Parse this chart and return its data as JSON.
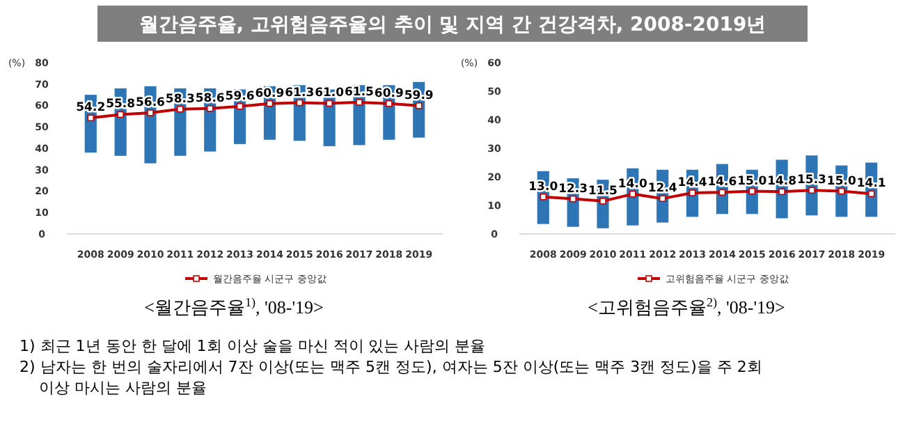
{
  "chart_data": [
    {
      "type": "bar",
      "title": "월간음주율, 고위험음주율의 추이 및 지역 간 건강격차, 2008-2019년",
      "ylabel": "(%)",
      "categories": [
        "2008",
        "2009",
        "2010",
        "2011",
        "2012",
        "2013",
        "2014",
        "2015",
        "2016",
        "2017",
        "2018",
        "2019"
      ],
      "series": [
        {
          "color": "#2e75b6",
          "base": [
            38,
            36.5,
            33,
            36.5,
            38.5,
            42,
            44,
            43.5,
            41,
            41.5,
            44,
            45
          ],
          "values": [
            27,
            31.5,
            36,
            31.5,
            29.5,
            25.5,
            25,
            26,
            26.5,
            28,
            25.5,
            26
          ]
        },
        {
          "type": "line",
          "name": "월간음주율 시군구 중앙값",
          "color": "#c00000",
          "values": [
            54.2,
            55.8,
            56.6,
            58.3,
            58.6,
            59.6,
            60.9,
            61.3,
            61.0,
            61.5,
            60.9,
            59.9
          ],
          "value_labels": [
            "54.2",
            "55.8",
            "56.6",
            "58.3",
            "58.6",
            "59.6",
            "60.9",
            "61.3",
            "61.0",
            "61.5",
            "60.9",
            "59.9"
          ]
        }
      ],
      "ylim": [
        0,
        80
      ],
      "yticks": [
        0,
        10,
        20,
        30,
        40,
        50,
        60,
        70,
        80
      ],
      "marker": "square",
      "legend": "bottom",
      "annotations": [
        "<월간음주율$^{1)}$, '08-'19>",
        "1) 최근 1년 동안 한 달에 1회 이상 술을 마신 적이 있는 사람의 분율",
        "2) 남자는 한 번의 술자리에서 7잔 이상(또는 맥주 5캔 정도), 여자는 5잔 이상(또는 맥주 3캔 정도)을 주 2회 이상 마시는 사람의 분율"
      ]
    },
    {
      "type": "bar",
      "ylabel": "(%)",
      "categories": [
        "2008",
        "2009",
        "2010",
        "2011",
        "2012",
        "2013",
        "2014",
        "2015",
        "2016",
        "2017",
        "2018",
        "2019"
      ],
      "series": [
        {
          "color": "#2e75b6",
          "base": [
            3.5,
            2.5,
            2,
            3,
            4,
            6,
            7,
            7,
            5.5,
            6.5,
            6,
            6
          ],
          "values": [
            18.5,
            17,
            17,
            20,
            18.5,
            16.5,
            17.5,
            15.5,
            20.5,
            21,
            18,
            19
          ]
        },
        {
          "type": "line",
          "name": "고위험음주율 시군구 중앙값",
          "color": "#c00000",
          "values": [
            13.0,
            12.3,
            11.5,
            14.0,
            12.4,
            14.4,
            14.6,
            15.0,
            14.8,
            15.3,
            15.0,
            14.1
          ],
          "value_labels": [
            "13.0",
            "12.3",
            "11.5",
            "14.0",
            "12.4",
            "14.4",
            "14.6",
            "15.0",
            "14.8",
            "15.3",
            "15.0",
            "14.1"
          ]
        }
      ],
      "ylim": [
        0,
        60
      ],
      "yticks": [
        0,
        10,
        20,
        30,
        40,
        50,
        60
      ],
      "marker": "square",
      "legend": "bottom",
      "annotations": [
        "<고위험음주율$^{2)}$, '08-'19>"
      ]
    }
  ]
}
